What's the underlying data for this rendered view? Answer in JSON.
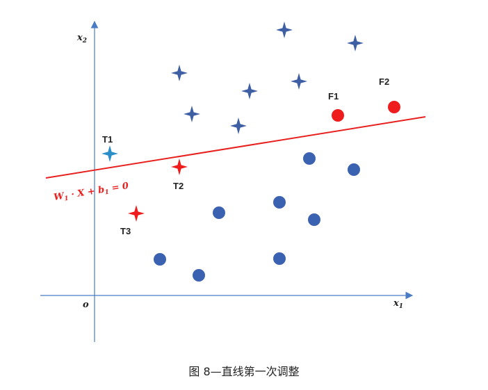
{
  "axes": {
    "x_label": "x",
    "x_sub": "1",
    "y_label": "x",
    "y_sub": "2",
    "origin_label": "o",
    "axis_color": "#4a7cc4"
  },
  "line": {
    "color": "#e8201e",
    "equation": {
      "w": "W",
      "w_sub": "1",
      "mid": " · X + ",
      "b": "b",
      "b_sub": "1",
      "rhs": " = 0"
    }
  },
  "colors": {
    "star_positive": "#3e5fa3",
    "circle_negative": "#3b62b1",
    "highlight_red": "#ee1c1c",
    "highlight_blue": "#2a8fc9"
  },
  "labels": {
    "t1": "T1",
    "t2": "T2",
    "t3": "T3",
    "f1": "F1",
    "f2": "F2"
  },
  "caption": "图 8—直线第一次调整"
}
